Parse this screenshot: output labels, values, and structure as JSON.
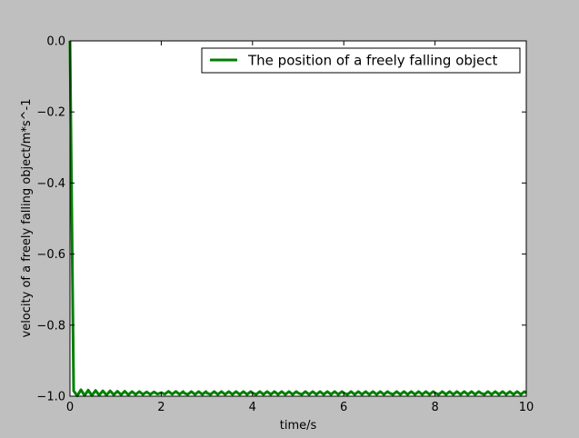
{
  "chart_data": {
    "type": "line",
    "title": "",
    "xlabel": "time/s",
    "ylabel": "velocity of a freely falling object/m*s^-1",
    "xlim": [
      0,
      10
    ],
    "ylim": [
      -1.0,
      0.0
    ],
    "xticks": [
      0,
      2,
      4,
      6,
      8,
      10
    ],
    "xtick_labels": [
      "0",
      "2",
      "4",
      "6",
      "8",
      "10"
    ],
    "yticks": [
      0.0,
      -0.2,
      -0.4,
      -0.6,
      -0.8,
      -1.0
    ],
    "ytick_labels": [
      "0.0",
      "−0.2",
      "−0.4",
      "−0.6",
      "−0.8",
      "−1.0"
    ],
    "grid": false,
    "legend_position": "top-right",
    "series": [
      {
        "name": "The position of a freely falling object",
        "color": "#008000",
        "x": [
          0.0,
          0.08,
          0.16,
          0.24,
          0.32,
          0.4,
          0.48,
          0.56,
          0.64,
          0.72,
          0.8,
          0.88,
          0.96,
          1.04,
          1.12,
          1.2,
          1.28,
          1.36,
          1.44,
          1.52,
          1.6,
          1.68,
          1.76,
          1.84,
          1.92,
          2.0,
          2.5,
          3.0,
          4.0,
          5.0,
          6.0,
          7.0,
          8.0,
          9.0,
          10.0
        ],
        "y": [
          0.0,
          -0.985,
          -0.999,
          -0.982,
          -0.998,
          -0.983,
          -0.998,
          -0.984,
          -0.997,
          -0.985,
          -0.997,
          -0.985,
          -0.996,
          -0.986,
          -0.996,
          -0.986,
          -0.996,
          -0.987,
          -0.995,
          -0.987,
          -0.995,
          -0.988,
          -0.995,
          -0.988,
          -0.994,
          -0.99,
          -0.991,
          -0.991,
          -0.991,
          -0.991,
          -0.991,
          -0.991,
          -0.991,
          -0.991,
          -0.991
        ],
        "oscillation": {
          "start": 2.0,
          "period": 0.16,
          "amplitude": 0.004
        }
      }
    ]
  }
}
